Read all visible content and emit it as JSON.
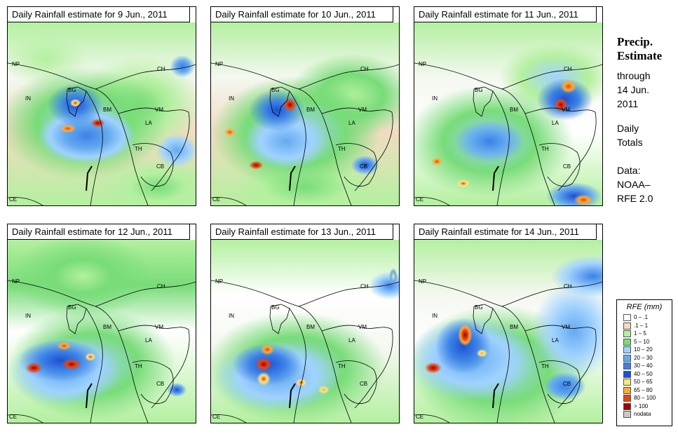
{
  "panels": [
    {
      "title": "Daily Rainfall estimate for  9 Jun., 2011"
    },
    {
      "title": "Daily Rainfall estimate for  10 Jun., 2011"
    },
    {
      "title": "Daily Rainfall estimate for  11 Jun., 2011"
    },
    {
      "title": "Daily Rainfall estimate for  12 Jun., 2011"
    },
    {
      "title": "Daily Rainfall estimate for  13 Jun., 2011"
    },
    {
      "title": "Daily Rainfall estimate for  14 Jun., 2011"
    }
  ],
  "labels": {
    "np": "NP",
    "ch": "CH",
    "in": "IN",
    "bg": "BG",
    "bm": "BM",
    "vm": "VM",
    "la": "LA",
    "th": "TH",
    "cb": "CB",
    "ce": "CE"
  },
  "side": {
    "title_line1": "Precip.",
    "title_line2": "Estimate",
    "through": "through",
    "date_line1": "14 Jun.",
    "date_line2": "2011",
    "daily_line1": "Daily",
    "daily_line2": "Totals",
    "data_line1": "Data:",
    "data_line2": "NOAA–",
    "data_line3": "RFE 2.0"
  },
  "legend": {
    "title": "RFE (mm)",
    "items": [
      {
        "label": "0 – .1",
        "color": "#ffffff"
      },
      {
        "label": ".1 – 1",
        "color": "#f0dcc0"
      },
      {
        "label": "1 – 5",
        "color": "#b4f0a0"
      },
      {
        "label": "5 – 10",
        "color": "#78dc78"
      },
      {
        "label": "10 – 20",
        "color": "#a0d2ff"
      },
      {
        "label": "20 – 30",
        "color": "#64aaf0"
      },
      {
        "label": "30 – 40",
        "color": "#3c82e6"
      },
      {
        "label": "40 – 50",
        "color": "#1e50d2"
      },
      {
        "label": "50 – 65",
        "color": "#ffe678"
      },
      {
        "label": "65 – 80",
        "color": "#ffaa32"
      },
      {
        "label": "80 – 100",
        "color": "#e64614"
      },
      {
        "label": "> 100",
        "color": "#a00000"
      },
      {
        "label": "nodata",
        "color": "#c8c8c8"
      }
    ]
  }
}
